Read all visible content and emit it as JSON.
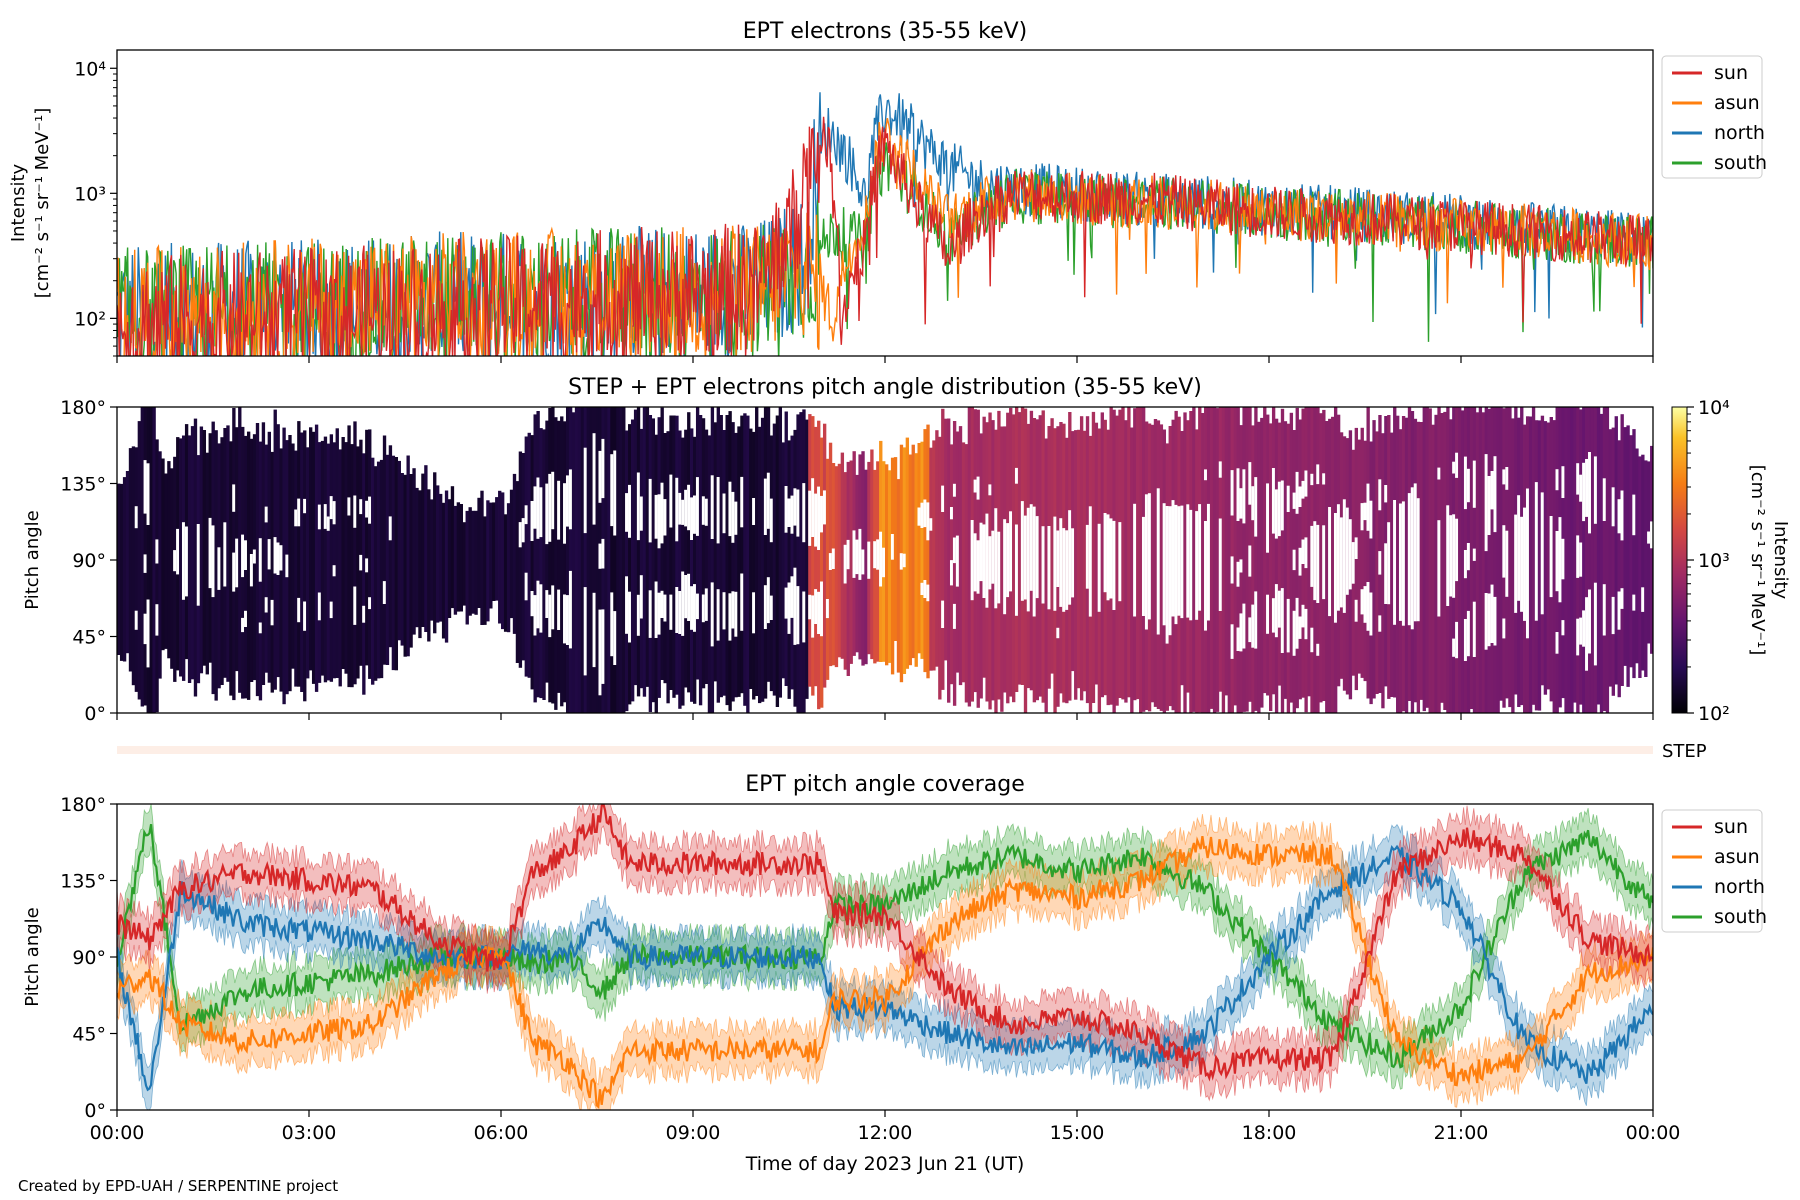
{
  "footer": "Created by EPD-UAH / SERPENTINE project",
  "colors": {
    "sun": "#d62728",
    "asun": "#ff7f0e",
    "north": "#1f77b4",
    "south": "#2ca02c",
    "step_band": "#fdeee6"
  },
  "chart_data": [
    {
      "type": "line",
      "title": "EPT electrons (35-55 keV)",
      "ylabel_line1": "Intensity",
      "ylabel_line2": "[cm⁻² s⁻¹ sr⁻¹ MeV⁻¹]",
      "yscale": "log",
      "ylim": [
        50,
        14000
      ],
      "yticks": [
        {
          "value": 100,
          "label": "10²"
        },
        {
          "value": 1000,
          "label": "10³"
        },
        {
          "value": 10000,
          "label": "10⁴"
        }
      ],
      "xlim_hours": [
        0,
        24
      ],
      "legend_position": "outside-right",
      "series": [
        {
          "name": "sun",
          "hours": [
            0,
            1,
            2,
            3,
            4,
            5,
            6,
            7,
            8,
            9,
            10,
            10.6,
            10.9,
            11.1,
            11.3,
            11.7,
            12,
            12.2,
            12.5,
            13,
            13.5,
            14,
            15,
            16,
            17,
            18,
            19,
            20,
            21,
            22,
            23,
            24
          ],
          "values": [
            90,
            95,
            100,
            105,
            110,
            120,
            130,
            140,
            150,
            160,
            170,
            500,
            2200,
            2600,
            70,
            400,
            2500,
            1500,
            800,
            300,
            700,
            1000,
            950,
            900,
            800,
            700,
            650,
            600,
            550,
            500,
            450,
            400
          ]
        },
        {
          "name": "asun",
          "hours": [
            0,
            1,
            2,
            3,
            4,
            5,
            6,
            7,
            8,
            9,
            10,
            10.8,
            11.2,
            11.7,
            12,
            12.3,
            12.7,
            13,
            13.5,
            14,
            15,
            16,
            17,
            18,
            19,
            20,
            21,
            22,
            23,
            24
          ],
          "values": [
            100,
            110,
            120,
            125,
            130,
            140,
            145,
            150,
            155,
            160,
            165,
            250,
            90,
            600,
            3000,
            1800,
            900,
            600,
            800,
            1000,
            900,
            850,
            800,
            700,
            650,
            600,
            550,
            500,
            450,
            400
          ]
        },
        {
          "name": "north",
          "hours": [
            0,
            1,
            2,
            3,
            4,
            5,
            6,
            7,
            8,
            9,
            10,
            10.8,
            11.1,
            11.7,
            12,
            12.3,
            12.7,
            13,
            13.5,
            14,
            15,
            16,
            17,
            18,
            19,
            20,
            21,
            22,
            23,
            24
          ],
          "values": [
            110,
            115,
            120,
            125,
            130,
            140,
            145,
            150,
            155,
            160,
            170,
            300,
            3200,
            800,
            4800,
            3500,
            2200,
            1600,
            1200,
            1100,
            1000,
            900,
            850,
            750,
            700,
            650,
            600,
            520,
            470,
            420
          ]
        },
        {
          "name": "south",
          "hours": [
            0,
            1,
            2,
            3,
            4,
            5,
            6,
            7,
            8,
            9,
            10,
            10.8,
            11.2,
            11.7,
            12,
            12.3,
            12.7,
            13,
            13.5,
            14,
            15,
            16,
            17,
            18,
            19,
            20,
            21,
            22,
            23,
            24
          ],
          "values": [
            105,
            110,
            115,
            120,
            125,
            135,
            140,
            145,
            150,
            155,
            160,
            220,
            500,
            400,
            1800,
            1200,
            700,
            400,
            700,
            950,
            900,
            850,
            800,
            700,
            650,
            600,
            550,
            480,
            440,
            400
          ]
        }
      ]
    },
    {
      "type": "heatmap",
      "title": "STEP + EPT electrons pitch angle distribution (35-55 keV)",
      "ylabel": "Pitch angle",
      "ylim": [
        0,
        180
      ],
      "yticks": [
        {
          "value": 0,
          "label": "0°"
        },
        {
          "value": 45,
          "label": "45°"
        },
        {
          "value": 90,
          "label": "90°"
        },
        {
          "value": 135,
          "label": "135°"
        },
        {
          "value": 180,
          "label": "180°"
        }
      ],
      "xlim_hours": [
        0,
        24
      ],
      "colorbar": {
        "scale": "log",
        "range": [
          100,
          10000
        ],
        "ticks": [
          {
            "value": 100,
            "label": "10²"
          },
          {
            "value": 1000,
            "label": "10³"
          },
          {
            "value": 10000,
            "label": "10⁴"
          }
        ],
        "label_line1": "Intensity",
        "label_line2": "[cm⁻² s⁻¹ sr⁻¹ MeV⁻¹]"
      },
      "step_band_label": "STEP"
    },
    {
      "type": "line",
      "title": "EPT pitch angle coverage",
      "ylabel": "Pitch angle",
      "xlabel": "Time of day 2023 Jun 21 (UT)",
      "ylim": [
        0,
        180
      ],
      "yticks": [
        {
          "value": 0,
          "label": "0°"
        },
        {
          "value": 45,
          "label": "45°"
        },
        {
          "value": 90,
          "label": "90°"
        },
        {
          "value": 135,
          "label": "135°"
        },
        {
          "value": 180,
          "label": "180°"
        }
      ],
      "xlim_hours": [
        0,
        24
      ],
      "xticks": [
        {
          "value": 0,
          "label": "00:00"
        },
        {
          "value": 3,
          "label": "03:00"
        },
        {
          "value": 6,
          "label": "06:00"
        },
        {
          "value": 9,
          "label": "09:00"
        },
        {
          "value": 12,
          "label": "12:00"
        },
        {
          "value": 15,
          "label": "15:00"
        },
        {
          "value": 18,
          "label": "18:00"
        },
        {
          "value": 21,
          "label": "21:00"
        },
        {
          "value": 24,
          "label": "00:00"
        }
      ],
      "legend_position": "outside-right",
      "series": [
        {
          "name": "sun",
          "hours": [
            0,
            0.5,
            1,
            2,
            3,
            4,
            5,
            6,
            6.5,
            7,
            7.6,
            8,
            9,
            10,
            11,
            11.2,
            12,
            13,
            14,
            15,
            16,
            17,
            18,
            19,
            20,
            21,
            22,
            23,
            24
          ],
          "values": [
            110,
            100,
            130,
            140,
            135,
            130,
            100,
            85,
            140,
            150,
            175,
            145,
            145,
            145,
            145,
            115,
            115,
            70,
            50,
            55,
            45,
            25,
            30,
            30,
            140,
            160,
            150,
            100,
            90
          ]
        },
        {
          "name": "asun",
          "hours": [
            0,
            0.5,
            1,
            2,
            3,
            4,
            5,
            6,
            6.5,
            7,
            7.6,
            8,
            9,
            10,
            11,
            11.2,
            12,
            13,
            14,
            15,
            16,
            17,
            18,
            19,
            20,
            21,
            22,
            23,
            24
          ],
          "values": [
            70,
            80,
            50,
            40,
            45,
            50,
            80,
            95,
            40,
            30,
            5,
            35,
            35,
            35,
            35,
            65,
            65,
            110,
            130,
            125,
            135,
            155,
            150,
            150,
            40,
            20,
            30,
            80,
            90
          ]
        },
        {
          "name": "north",
          "hours": [
            0,
            0.5,
            1,
            2,
            3,
            4,
            5,
            6,
            6.5,
            7,
            7.6,
            8,
            9,
            10,
            11,
            11.2,
            12,
            13,
            14,
            15,
            16,
            17,
            18,
            19,
            20,
            21,
            22,
            23,
            24
          ],
          "values": [
            90,
            10,
            130,
            110,
            105,
            100,
            90,
            90,
            95,
            90,
            110,
            90,
            90,
            90,
            90,
            60,
            60,
            45,
            35,
            40,
            30,
            45,
            90,
            130,
            150,
            120,
            40,
            20,
            60
          ]
        },
        {
          "name": "south",
          "hours": [
            0,
            0.5,
            1,
            2,
            3,
            4,
            5,
            6,
            6.5,
            7,
            7.6,
            8,
            9,
            10,
            11,
            11.2,
            12,
            13,
            14,
            15,
            16,
            17,
            18,
            19,
            20,
            21,
            22,
            23,
            24
          ],
          "values": [
            90,
            170,
            50,
            70,
            75,
            80,
            90,
            90,
            85,
            90,
            70,
            90,
            90,
            90,
            90,
            120,
            120,
            140,
            150,
            140,
            150,
            130,
            90,
            50,
            30,
            60,
            140,
            160,
            120
          ]
        }
      ]
    }
  ]
}
